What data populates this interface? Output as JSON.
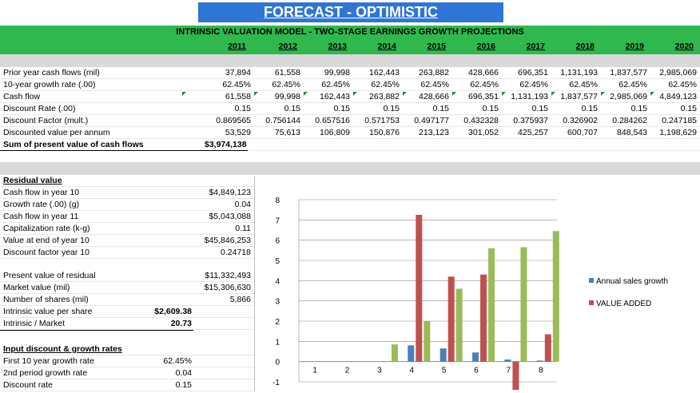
{
  "title": "FORECAST - OPTIMISTIC",
  "subtitle": "INTRINSIC VALUATION MODEL - TWO-STAGE EARNINGS GROWTH PROJECTIONS",
  "years": [
    "2011",
    "2012",
    "2013",
    "2014",
    "2015",
    "2016",
    "2017",
    "2018",
    "2019",
    "2020"
  ],
  "projection_rows": [
    {
      "label": "Prior year cash flows (mil)",
      "values": [
        "37,894",
        "61,558",
        "99,998",
        "162,443",
        "263,882",
        "428,666",
        "696,351",
        "1,131,193",
        "1,837,577",
        "2,985,069"
      ]
    },
    {
      "label": "10-year growth rate (.00)",
      "values": [
        "62.45%",
        "62.45%",
        "62.45%",
        "62.45%",
        "62.45%",
        "62.45%",
        "62.45%",
        "62.45%",
        "62.45%",
        "62.45%"
      ]
    },
    {
      "label": "Cash flow",
      "values": [
        "61,558",
        "99,998",
        "162,443",
        "263,882",
        "428,666",
        "696,351",
        "1,131,193",
        "1,837,577",
        "2,985,069",
        "4,849,123"
      ]
    },
    {
      "label": "Discount Rate (.00)",
      "values": [
        "0.15",
        "0.15",
        "0.15",
        "0.15",
        "0.15",
        "0.15",
        "0.15",
        "0.15",
        "0.15",
        "0.15"
      ]
    },
    {
      "label": "Discount Factor (mult.)",
      "values": [
        "0.869565",
        "0.756144",
        "0.657516",
        "0.571753",
        "0.497177",
        "0.432328",
        "0.375937",
        "0.326902",
        "0.284262",
        "0.247185"
      ]
    },
    {
      "label": "Discounted value per annum",
      "values": [
        "53,529",
        "75,613",
        "106,809",
        "150,876",
        "213,123",
        "301,052",
        "425,257",
        "600,707",
        "848,543",
        "1,198,629"
      ]
    }
  ],
  "sum_pv": {
    "label": "Sum of present value of cash flows",
    "value": "$3,974,138"
  },
  "residual": {
    "heading": "Residual value",
    "rows": [
      {
        "label": "Cash flow in year 10",
        "value": "$4,849,123"
      },
      {
        "label": "Growth rate (.00) (g)",
        "value": "0.04"
      },
      {
        "label": "Cash flow in year 11",
        "value": "$5,043,088"
      },
      {
        "label": "Capitalization rate (k-g)",
        "value": "0.11"
      },
      {
        "label": "Value at end of year 10",
        "value": "$45,846,253"
      },
      {
        "label": "Discount factor year 10",
        "value": "0.24718"
      }
    ]
  },
  "valuation": {
    "rows": [
      {
        "label": "Present value of residual",
        "value": "$11,332,493"
      },
      {
        "label": "Market value (mil)",
        "value": "$15,306,630"
      },
      {
        "label": "Number of shares (mil)",
        "value": "5,866"
      }
    ],
    "intrinsic_per_share": {
      "label": "Intrinsic value per share",
      "value": "$2,609.38"
    },
    "intrinsic_market": {
      "label": "Intrinsic / Market",
      "value": "20.73"
    }
  },
  "inputs": {
    "heading": "Input discount & growth rates",
    "rows": [
      {
        "label": "First 10 year growth rate",
        "value": "62.45%"
      },
      {
        "label": "2nd period growth rate",
        "value": "0.04"
      },
      {
        "label": "Discount rate",
        "value": "0.15"
      }
    ]
  },
  "chart_data": {
    "type": "bar",
    "categories": [
      "1",
      "2",
      "3",
      "4",
      "5",
      "6",
      "7",
      "8"
    ],
    "ylim": [
      -1,
      8
    ],
    "yticks": [
      "8",
      "7",
      "6",
      "5",
      "4",
      "3",
      "2",
      "1",
      "0",
      "-1"
    ],
    "series": [
      {
        "name": "Annual sales growth",
        "color": "#4a7ebb",
        "values": [
          0,
          0,
          0,
          0.8,
          0.65,
          0.45,
          0.1,
          0.05
        ]
      },
      {
        "name": "VALUE ADDED",
        "color": "#c0504d",
        "values": [
          0,
          0,
          0,
          7.25,
          4.2,
          4.3,
          -1.4,
          1.35
        ]
      },
      {
        "name": "",
        "color": "#9bbb59",
        "values": [
          0,
          0,
          0.85,
          2.0,
          3.6,
          5.6,
          5.65,
          6.45
        ]
      }
    ],
    "legend": [
      "Annual sales growth",
      "VALUE ADDED"
    ],
    "legend_position": "right",
    "grid": true
  }
}
